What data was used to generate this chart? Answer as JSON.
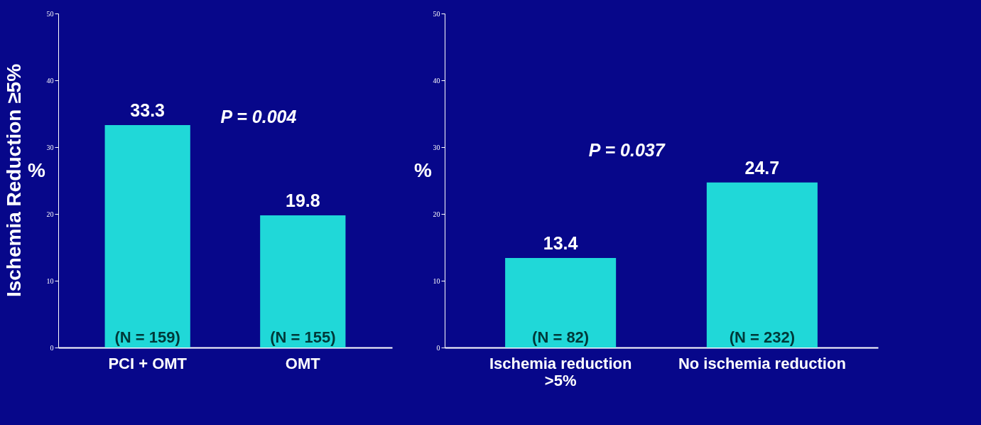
{
  "chart_data": [
    {
      "type": "bar",
      "title": "Ischemia Reduction ≥5%",
      "ylabel": "%",
      "categories": [
        "PCI + OMT",
        "OMT"
      ],
      "values": [
        33.3,
        19.8
      ],
      "color": "#20d8d8",
      "ylim": [
        0,
        50
      ],
      "yticks": [
        0,
        10,
        20,
        30,
        40,
        50
      ],
      "grid": false,
      "data_labels": true,
      "annotations": [
        "P = 0.004",
        {
          "text": "(N = 159)",
          "x": "PCI + OMT",
          "y": 0
        },
        {
          "text": "(N = 155)",
          "x": "OMT",
          "y": 0
        }
      ]
    },
    {
      "type": "bar",
      "ylabel": "%",
      "categories": [
        "Ischemia reduction >5%",
        "No ischemia reduction"
      ],
      "values": [
        13.4,
        24.7
      ],
      "color": "#20d8d8",
      "ylim": [
        0,
        50
      ],
      "yticks": [
        0,
        10,
        20,
        30,
        40,
        50
      ],
      "grid": false,
      "data_labels": true,
      "annotations": [
        "P = 0.037",
        {
          "text": "(N = 82)",
          "x": "Ischemia reduction >5%",
          "y": 0
        },
        {
          "text": "(N = 232)",
          "x": "No ischemia reduction",
          "y": 0
        }
      ]
    }
  ]
}
